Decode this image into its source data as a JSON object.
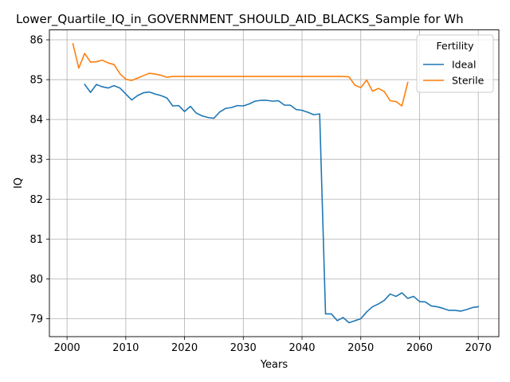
{
  "chart_data": {
    "type": "line",
    "title": "Lower_Quartile_IQ_in_GOVERNMENT_SHOULD_AID_BLACKS_Sample for Wh",
    "xlabel": "Years",
    "ylabel": "IQ",
    "xlim": [
      1997,
      2073.5
    ],
    "ylim": [
      78.55,
      86.25
    ],
    "xticks": [
      2000,
      2010,
      2020,
      2030,
      2040,
      2050,
      2060,
      2070
    ],
    "yticks": [
      79,
      80,
      81,
      82,
      83,
      84,
      85,
      86
    ],
    "grid": true,
    "legend": {
      "title": "Fertility",
      "position": "top-right"
    },
    "series": [
      {
        "name": "Ideal",
        "color": "#1f77b4",
        "x": [
          2003,
          2004,
          2005,
          2006,
          2007,
          2008,
          2009,
          2010,
          2011,
          2012,
          2013,
          2014,
          2015,
          2016,
          2017,
          2018,
          2019,
          2020,
          2021,
          2022,
          2023,
          2024,
          2025,
          2026,
          2027,
          2028,
          2029,
          2030,
          2031,
          2032,
          2033,
          2034,
          2035,
          2036,
          2037,
          2038,
          2039,
          2040,
          2041,
          2042,
          2043,
          2044,
          2045,
          2046,
          2047,
          2048,
          2049,
          2050,
          2051,
          2052,
          2053,
          2054,
          2055,
          2056,
          2057,
          2058,
          2059,
          2060,
          2061,
          2062,
          2063,
          2064,
          2065,
          2066,
          2067,
          2068,
          2069,
          2070
        ],
        "y": [
          84.88,
          84.68,
          84.88,
          84.82,
          84.79,
          84.85,
          84.79,
          84.64,
          84.49,
          84.6,
          84.67,
          84.69,
          84.64,
          84.6,
          84.54,
          84.34,
          84.35,
          84.2,
          84.33,
          84.16,
          84.09,
          84.05,
          84.03,
          84.19,
          84.28,
          84.3,
          84.35,
          84.34,
          84.39,
          84.46,
          84.48,
          84.48,
          84.46,
          84.47,
          84.36,
          84.36,
          84.25,
          84.23,
          84.18,
          84.12,
          84.14,
          79.12,
          79.12,
          78.95,
          79.03,
          78.9,
          78.95,
          79.0,
          79.17,
          79.3,
          79.37,
          79.46,
          79.62,
          79.56,
          79.65,
          79.51,
          79.56,
          79.43,
          79.42,
          79.32,
          79.3,
          79.26,
          79.21,
          79.21,
          79.19,
          79.23,
          79.28,
          79.3
        ]
      },
      {
        "name": "Sterile",
        "color": "#ff7f0e",
        "x": [
          2001,
          2002,
          2003,
          2004,
          2005,
          2006,
          2007,
          2008,
          2009,
          2010,
          2011,
          2012,
          2013,
          2014,
          2015,
          2016,
          2017,
          2018,
          2019,
          2020,
          2021,
          2022,
          2023,
          2024,
          2025,
          2026,
          2027,
          2028,
          2029,
          2030,
          2031,
          2032,
          2033,
          2034,
          2035,
          2036,
          2037,
          2038,
          2039,
          2040,
          2041,
          2042,
          2043,
          2044,
          2045,
          2046,
          2047,
          2048,
          2049,
          2050,
          2051,
          2052,
          2053,
          2054,
          2055,
          2056,
          2057,
          2058
        ],
        "y": [
          85.9,
          85.29,
          85.66,
          85.44,
          85.45,
          85.49,
          85.42,
          85.38,
          85.15,
          85.01,
          84.98,
          85.04,
          85.1,
          85.16,
          85.14,
          85.11,
          85.06,
          85.08,
          85.08,
          85.08,
          85.08,
          85.08,
          85.08,
          85.08,
          85.08,
          85.08,
          85.08,
          85.08,
          85.08,
          85.08,
          85.08,
          85.08,
          85.08,
          85.08,
          85.08,
          85.08,
          85.08,
          85.08,
          85.08,
          85.08,
          85.08,
          85.08,
          85.08,
          85.08,
          85.08,
          85.08,
          85.08,
          85.07,
          84.86,
          84.8,
          84.99,
          84.71,
          84.78,
          84.7,
          84.47,
          84.45,
          84.34,
          84.93
        ]
      }
    ]
  }
}
